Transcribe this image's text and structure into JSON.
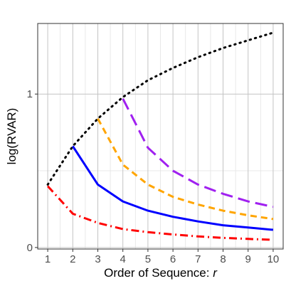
{
  "chart_data": {
    "type": "line",
    "xlabel": "Order of Sequence: ",
    "xlabel_var": "r",
    "ylabel": "log(RVAR)",
    "x_ticks": [
      1,
      2,
      3,
      4,
      5,
      6,
      7,
      8,
      9,
      10
    ],
    "y_ticks": [
      0,
      1
    ],
    "xlim": [
      0.6,
      10.4
    ],
    "ylim": [
      -0.01,
      1.46
    ],
    "grid": true,
    "legend": "none",
    "series": [
      {
        "color": "#000000",
        "dash": "dotted",
        "x": [
          1,
          2,
          3,
          4,
          5,
          6,
          7,
          8,
          9,
          10
        ],
        "y": [
          0.41,
          0.66,
          0.84,
          0.98,
          1.09,
          1.17,
          1.24,
          1.3,
          1.35,
          1.4
        ]
      },
      {
        "color": "#ff0000",
        "dash": "dotdash",
        "x": [
          1,
          2,
          3,
          4,
          5,
          6,
          7,
          8,
          9,
          10
        ],
        "y": [
          0.4,
          0.22,
          0.16,
          0.12,
          0.1,
          0.085,
          0.072,
          0.063,
          0.056,
          0.05
        ]
      },
      {
        "color": "#0000ff",
        "dash": "solid",
        "x": [
          2,
          3,
          4,
          5,
          6,
          7,
          8,
          9,
          10
        ],
        "y": [
          0.66,
          0.41,
          0.3,
          0.24,
          0.2,
          0.17,
          0.145,
          0.13,
          0.115
        ]
      },
      {
        "color": "#ffa500",
        "dash": "dashed",
        "x": [
          3,
          4,
          5,
          6,
          7,
          8,
          9,
          10
        ],
        "y": [
          0.84,
          0.54,
          0.41,
          0.33,
          0.28,
          0.24,
          0.21,
          0.185
        ]
      },
      {
        "color": "#a020f0",
        "dash": "longdash",
        "x": [
          4,
          5,
          6,
          7,
          8,
          9,
          10
        ],
        "y": [
          0.97,
          0.65,
          0.5,
          0.41,
          0.35,
          0.3,
          0.265
        ]
      }
    ]
  }
}
